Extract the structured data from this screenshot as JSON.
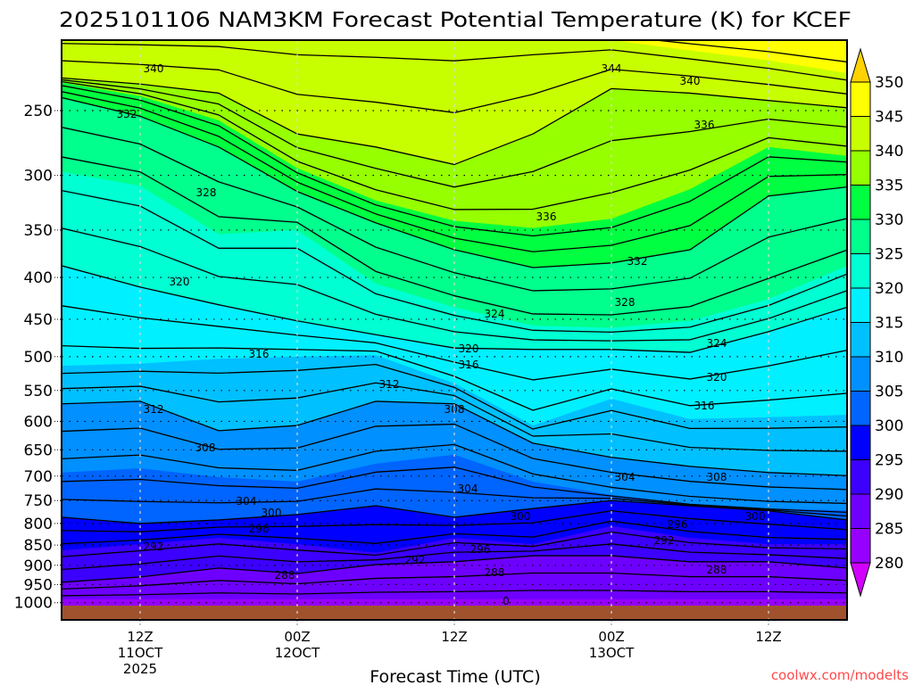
{
  "title": "2025101106 NAM3KM Forecast Potential Temperature (K) for KCEF",
  "watermark": "coolwx.com/modelts",
  "chart_data": {
    "type": "heatmap",
    "title": "2025101106 NAM3KM Forecast Potential Temperature (K) for KCEF",
    "xlabel": "Forecast Time (UTC)",
    "x_hours": [
      0,
      6,
      12,
      18,
      24,
      30,
      36,
      42,
      48,
      54,
      60
    ],
    "xlim_hours": [
      0,
      60
    ],
    "x_ticks": [
      {
        "hour": 6,
        "lines": [
          "12Z",
          "11OCT",
          "2025"
        ]
      },
      {
        "hour": 18,
        "lines": [
          "00Z",
          "12OCT"
        ]
      },
      {
        "hour": 30,
        "lines": [
          "12Z"
        ]
      },
      {
        "hour": 42,
        "lines": [
          "00Z",
          "13OCT"
        ]
      },
      {
        "hour": 54,
        "lines": [
          "12Z"
        ]
      }
    ],
    "y_ticks": [
      250,
      300,
      350,
      400,
      450,
      500,
      550,
      600,
      650,
      700,
      750,
      800,
      850,
      900,
      950,
      1000
    ],
    "ylim_hpa": [
      1050,
      205
    ],
    "y_scale": "log-pressure",
    "contour_interval_k": 2,
    "isentropes": [
      {
        "theta": 350,
        "pressure_hpa": [
          192,
          192,
          192,
          192,
          192,
          192,
          192,
          192,
          192,
          192,
          192
        ]
      },
      {
        "theta": 345,
        "pressure_hpa": [
          202,
          202,
          202,
          202,
          202,
          202,
          202,
          205,
          211,
          217,
          225
        ]
      },
      {
        "theta": 340,
        "pressure_hpa": [
          228,
          232,
          238,
          267,
          277,
          291,
          267,
          235,
          238,
          243,
          248
        ]
      },
      {
        "theta": 335,
        "pressure_hpa": [
          231,
          240,
          257,
          294,
          322,
          341,
          348,
          339,
          312,
          277,
          284
        ]
      },
      {
        "theta": 330,
        "pressure_hpa": [
          241,
          254,
          277,
          314,
          343,
          370,
          389,
          384,
          370,
          318,
          310
        ]
      },
      {
        "theta": 325,
        "pressure_hpa": [
          297,
          309,
          354,
          350,
          407,
          435,
          458,
          461,
          452,
          425,
          387
        ]
      },
      {
        "theta": 320,
        "pressure_hpa": [
          387,
          411,
          432,
          452,
          470,
          488,
          490,
          490,
          494,
          466,
          435
        ]
      },
      {
        "theta": 315,
        "pressure_hpa": [
          513,
          510,
          503,
          500,
          498,
          539,
          607,
          563,
          596,
          593,
          589
        ]
      },
      {
        "theta": 310,
        "pressure_hpa": [
          571,
          567,
          616,
          607,
          567,
          571,
          638,
          664,
          681,
          693,
          699
        ]
      },
      {
        "theta": 305,
        "pressure_hpa": [
          693,
          685,
          702,
          711,
          676,
          659,
          711,
          738,
          757,
          767,
          771
        ]
      },
      {
        "theta": 300,
        "pressure_hpa": [
          786,
          800,
          792,
          780,
          761,
          786,
          767,
          750,
          761,
          772,
          792
        ]
      },
      {
        "theta": 295,
        "pressure_hpa": [
          863,
          848,
          833,
          848,
          869,
          833,
          848,
          806,
          833,
          848,
          848
        ]
      },
      {
        "theta": 290,
        "pressure_hpa": [
          944,
          930,
          907,
          921,
          898,
          891,
          876,
          876,
          891,
          891,
          907
        ]
      },
      {
        "theta": 285,
        "pressure_hpa": [
          990,
          990,
          990,
          990,
          990,
          990,
          990,
          990,
          990,
          990,
          990
        ]
      }
    ],
    "color_levels": [
      280,
      285,
      290,
      295,
      300,
      305,
      310,
      315,
      320,
      325,
      330,
      335,
      340,
      345,
      350
    ],
    "colorbar_labels": [
      "280",
      "285",
      "290",
      "295",
      "300",
      "305",
      "310",
      "315",
      "320",
      "325",
      "330",
      "335",
      "340",
      "345",
      "350"
    ],
    "colors": [
      "#d200ff",
      "#9600ff",
      "#6e00ff",
      "#3c00ff",
      "#0000ff",
      "#0064ff",
      "#0090ff",
      "#00c0ff",
      "#00f0ff",
      "#00ffd2",
      "#00ff8c",
      "#00ff40",
      "#96ff00",
      "#c8ff00",
      "#ffff00",
      "#ffd200"
    ],
    "terrain_color": "#a0522d",
    "contour_labels": [
      "340",
      "332",
      "328",
      "320",
      "316",
      "312",
      "312",
      "308",
      "304",
      "300",
      "296",
      "292",
      "288",
      "344",
      "340",
      "336",
      "336",
      "332",
      "328",
      "324",
      "324",
      "320",
      "316",
      "320",
      "316",
      "308",
      "304",
      "304",
      "308",
      "300",
      "300",
      "296",
      "292",
      "292",
      "296",
      "288",
      "288",
      "0"
    ]
  }
}
